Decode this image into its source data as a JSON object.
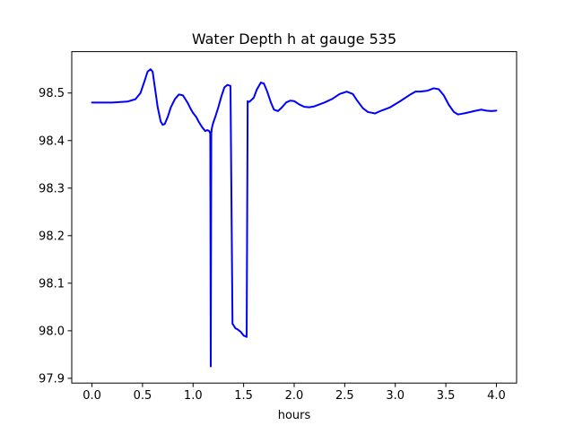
{
  "chart_data": {
    "type": "line",
    "title": "Water Depth h at gauge 535",
    "xlabel": "hours",
    "ylabel": "",
    "xlim": [
      -0.2,
      4.2
    ],
    "ylim": [
      97.89,
      98.587
    ],
    "xticks": [
      0.0,
      0.5,
      1.0,
      1.5,
      2.0,
      2.5,
      3.0,
      3.5,
      4.0
    ],
    "xtick_labels": [
      "0.0",
      "0.5",
      "1.0",
      "1.5",
      "2.0",
      "2.5",
      "3.0",
      "3.5",
      "4.0"
    ],
    "yticks": [
      97.9,
      98.0,
      98.1,
      98.2,
      98.3,
      98.4,
      98.5
    ],
    "ytick_labels": [
      "97.9",
      "98.0",
      "98.1",
      "98.2",
      "98.3",
      "98.4",
      "98.5"
    ],
    "grid": false,
    "legend": "none",
    "series": [
      {
        "color": "#0000ff",
        "x": [
          0.0,
          0.2,
          0.35,
          0.43,
          0.48,
          0.52,
          0.55,
          0.58,
          0.6,
          0.62,
          0.65,
          0.68,
          0.7,
          0.72,
          0.75,
          0.78,
          0.82,
          0.86,
          0.9,
          0.95,
          0.98,
          1.0,
          1.03,
          1.06,
          1.09,
          1.12,
          1.14,
          1.16,
          1.17,
          1.175,
          1.18,
          1.185,
          1.19,
          1.2,
          1.22,
          1.25,
          1.28,
          1.31,
          1.34,
          1.37,
          1.39,
          1.405,
          1.41,
          1.42,
          1.44,
          1.47,
          1.5,
          1.53,
          1.54,
          1.545,
          1.56,
          1.6,
          1.63,
          1.67,
          1.7,
          1.73,
          1.77,
          1.8,
          1.84,
          1.88,
          1.92,
          1.96,
          2.0,
          2.05,
          2.1,
          2.15,
          2.2,
          2.3,
          2.38,
          2.45,
          2.52,
          2.58,
          2.62,
          2.68,
          2.73,
          2.8,
          2.85,
          2.95,
          3.05,
          3.15,
          3.2,
          3.25,
          3.32,
          3.38,
          3.43,
          3.48,
          3.53,
          3.58,
          3.62,
          3.65,
          3.7,
          3.78,
          3.85,
          3.9,
          3.95,
          4.0
        ],
        "y": [
          98.48,
          98.48,
          98.482,
          98.487,
          98.5,
          98.525,
          98.545,
          98.55,
          98.545,
          98.515,
          98.47,
          98.44,
          98.433,
          98.435,
          98.45,
          98.47,
          98.487,
          98.497,
          98.495,
          98.478,
          98.465,
          98.458,
          98.45,
          98.438,
          98.428,
          98.42,
          98.422,
          98.42,
          98.415,
          97.925,
          98.415,
          98.425,
          98.43,
          98.438,
          98.45,
          98.47,
          98.493,
          98.512,
          98.517,
          98.515,
          98.015,
          98.01,
          98.008,
          98.005,
          98.003,
          97.998,
          97.99,
          97.987,
          98.483,
          98.481,
          98.482,
          98.49,
          98.507,
          98.522,
          98.52,
          98.505,
          98.48,
          98.465,
          98.462,
          98.47,
          98.48,
          98.484,
          98.483,
          98.476,
          98.471,
          98.47,
          98.472,
          98.48,
          98.488,
          98.498,
          98.503,
          98.498,
          98.485,
          98.468,
          98.46,
          98.457,
          98.462,
          98.47,
          98.483,
          98.497,
          98.503,
          98.503,
          98.505,
          98.51,
          98.508,
          98.495,
          98.475,
          98.46,
          98.455,
          98.456,
          98.458,
          98.462,
          98.465,
          98.463,
          98.462,
          98.463
        ]
      }
    ]
  }
}
